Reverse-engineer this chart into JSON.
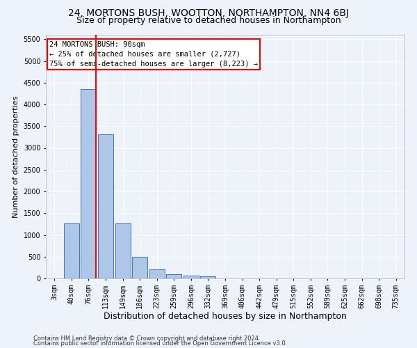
{
  "title": "24, MORTONS BUSH, WOOTTON, NORTHAMPTON, NN4 6BJ",
  "subtitle": "Size of property relative to detached houses in Northampton",
  "xlabel": "Distribution of detached houses by size in Northampton",
  "ylabel": "Number of detached properties",
  "footnote1": "Contains HM Land Registry data © Crown copyright and database right 2024.",
  "footnote2": "Contains public sector information licensed under the Open Government Licence v3.0.",
  "bar_labels": [
    "3sqm",
    "40sqm",
    "76sqm",
    "113sqm",
    "149sqm",
    "186sqm",
    "223sqm",
    "259sqm",
    "296sqm",
    "332sqm",
    "369sqm",
    "406sqm",
    "442sqm",
    "479sqm",
    "515sqm",
    "552sqm",
    "589sqm",
    "625sqm",
    "662sqm",
    "698sqm",
    "735sqm"
  ],
  "bar_values": [
    0,
    1270,
    4350,
    3310,
    1260,
    490,
    215,
    90,
    60,
    55,
    0,
    0,
    0,
    0,
    0,
    0,
    0,
    0,
    0,
    0,
    0
  ],
  "bar_color": "#aec6e8",
  "bar_edge_color": "#4472c4",
  "vline_x": 2.42,
  "vline_color": "red",
  "annotation_box_text": "24 MORTONS BUSH: 90sqm\n← 25% of detached houses are smaller (2,727)\n75% of semi-detached houses are larger (8,223) →",
  "ylim": [
    0,
    5600
  ],
  "yticks": [
    0,
    500,
    1000,
    1500,
    2000,
    2500,
    3000,
    3500,
    4000,
    4500,
    5000,
    5500
  ],
  "background_color": "#eef2fb",
  "grid_color": "#ffffff",
  "title_fontsize": 10,
  "subtitle_fontsize": 9,
  "xlabel_fontsize": 9,
  "ylabel_fontsize": 8,
  "tick_fontsize": 7,
  "annot_fontsize": 7.5
}
